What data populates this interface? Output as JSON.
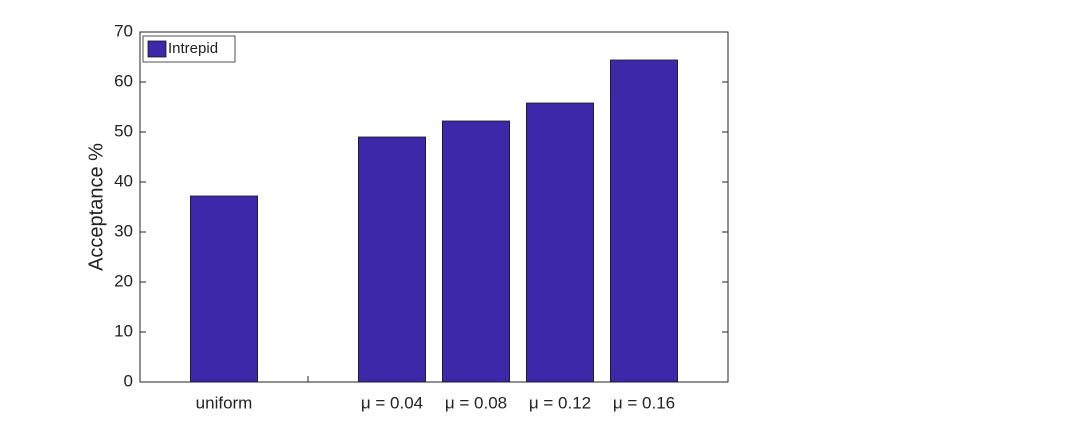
{
  "chart_data": {
    "type": "bar",
    "categories": [
      "uniform",
      null,
      "μ = 0.04",
      "μ = 0.08",
      "μ = 0.12",
      "μ = 0.16"
    ],
    "series": [
      {
        "name": "Intrepid",
        "color": "#3d28a9",
        "values": [
          37.2,
          null,
          49,
          52.2,
          55.8,
          64.4
        ]
      }
    ],
    "ylabel": "Acceptance %",
    "ylim": [
      0,
      70
    ],
    "yticks": [
      0,
      10,
      20,
      30,
      40,
      50,
      60,
      70
    ],
    "legend": "upper left"
  }
}
